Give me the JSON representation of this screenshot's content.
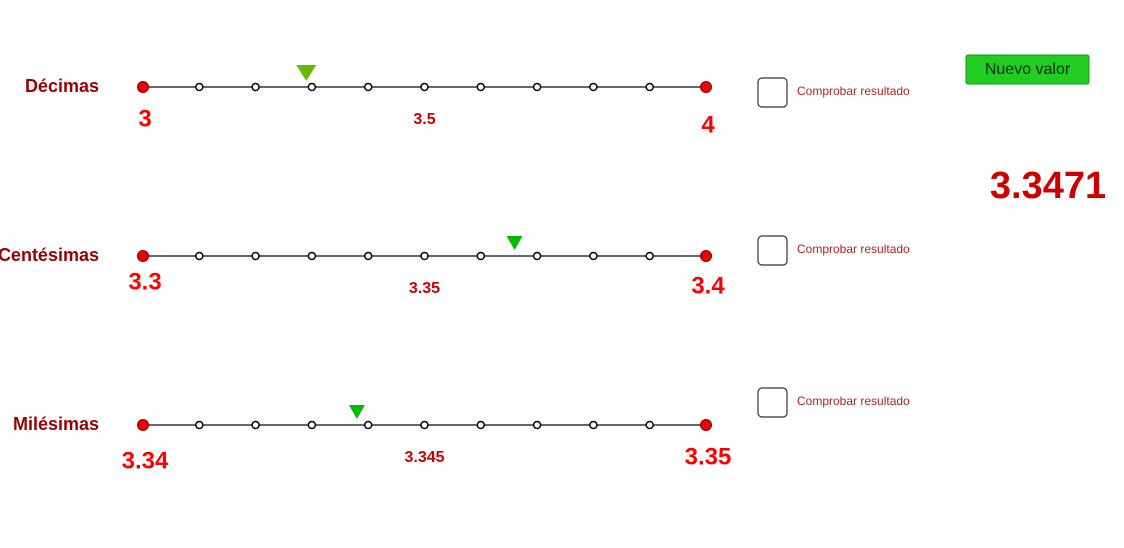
{
  "header": {
    "button": "Nuevo valor",
    "value": 3.3471
  },
  "rows": [
    {
      "label": "Décimas",
      "start": 3,
      "middle": 3.5,
      "end": 4,
      "marker": 3.29,
      "checkbox": "Comprobar resultado"
    },
    {
      "label": "Centésimas",
      "start": 3.3,
      "middle": 3.35,
      "end": 3.4,
      "marker": 3.366,
      "checkbox": "Comprobar resultado"
    },
    {
      "label": "Milésimas",
      "start": 3.34,
      "middle": 3.345,
      "end": 3.35,
      "marker": 3.3438,
      "checkbox": "Comprobar resultado"
    }
  ]
}
